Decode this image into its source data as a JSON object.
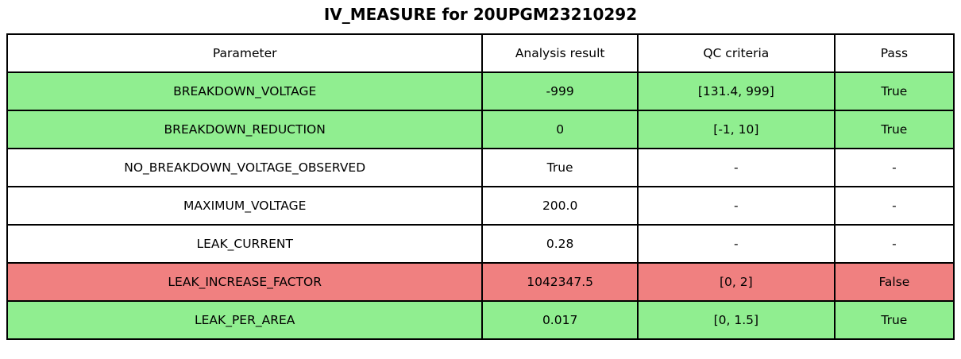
{
  "title": "IV_MEASURE for 20UPGM23210292",
  "colors": {
    "pass_row": "#90EE90",
    "fail_row": "#F08080",
    "neutral_row": "#FFFFFF",
    "border": "#000000",
    "text": "#000000"
  },
  "chart_data": {
    "type": "table",
    "title": "IV_MEASURE for 20UPGM23210292",
    "columns": [
      "Parameter",
      "Analysis result",
      "QC criteria",
      "Pass"
    ],
    "rows": [
      {
        "cells": [
          "BREAKDOWN_VOLTAGE",
          "-999",
          "[131.4, 999]",
          "True"
        ],
        "status": "pass"
      },
      {
        "cells": [
          "BREAKDOWN_REDUCTION",
          "0",
          "[-1, 10]",
          "True"
        ],
        "status": "pass"
      },
      {
        "cells": [
          "NO_BREAKDOWN_VOLTAGE_OBSERVED",
          "True",
          "-",
          "-"
        ],
        "status": "neutral"
      },
      {
        "cells": [
          "MAXIMUM_VOLTAGE",
          "200.0",
          "-",
          "-"
        ],
        "status": "neutral"
      },
      {
        "cells": [
          "LEAK_CURRENT",
          "0.28",
          "-",
          "-"
        ],
        "status": "neutral"
      },
      {
        "cells": [
          "LEAK_INCREASE_FACTOR",
          "1042347.5",
          "[0, 2]",
          "False"
        ],
        "status": "fail"
      },
      {
        "cells": [
          "LEAK_PER_AREA",
          "0.017",
          "[0, 1.5]",
          "True"
        ],
        "status": "pass"
      }
    ]
  }
}
